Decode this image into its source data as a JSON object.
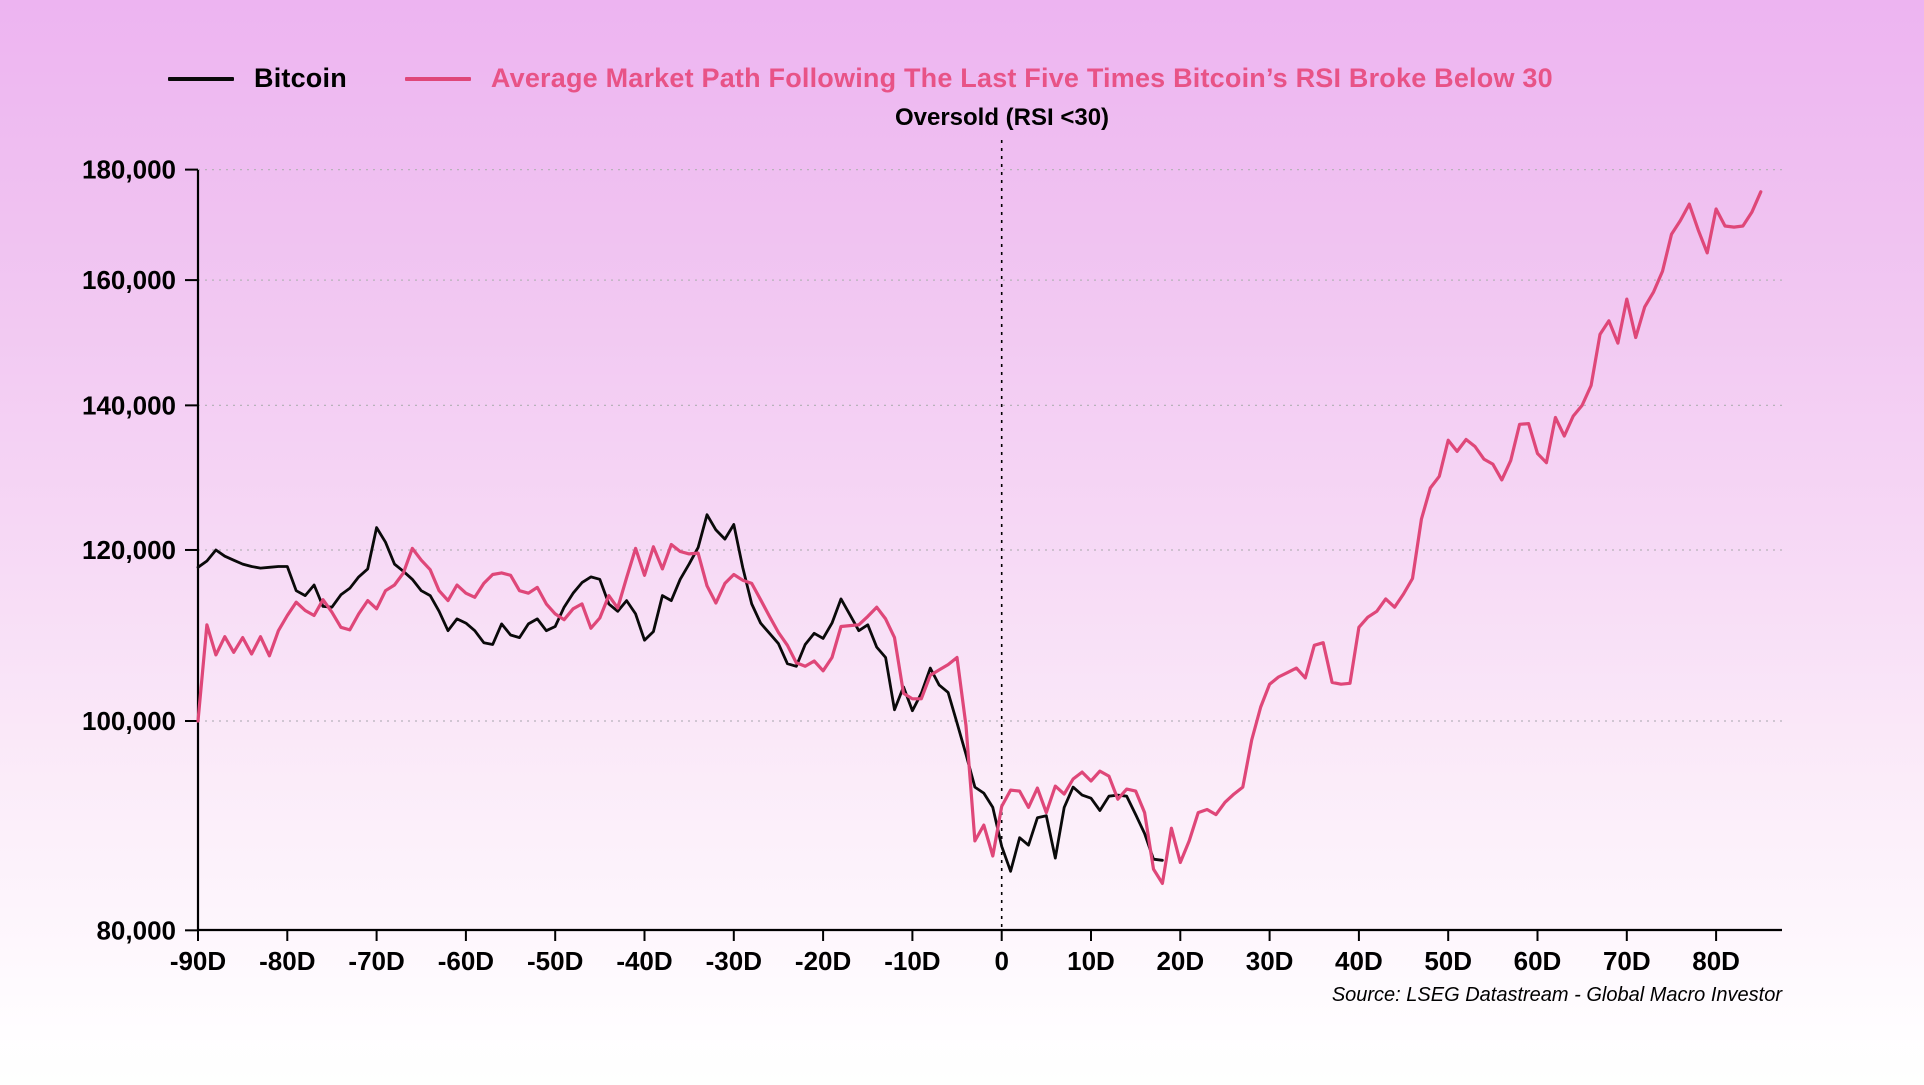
{
  "legend": {
    "bitcoin_label": "Bitcoin",
    "average_label": "Average Market Path Following The Last Five Times Bitcoin’s RSI Broke Below 30"
  },
  "annotation": {
    "oversold_label": "Oversold (RSI <30)"
  },
  "source_text": "Source: LSEG Datastream - Global Macro Investor",
  "colors": {
    "bitcoin_line": "#0a0a0a",
    "average_line": "#df4779",
    "title_pink": "#e85387",
    "gridline": "#b8b2ba",
    "axis": "#000000",
    "background_top": "#edb4f1",
    "background_bottom": "#fffdff"
  },
  "chart_data": {
    "type": "line",
    "title": "Average Market Path Following The Last Five Times Bitcoin’s RSI Broke Below 30",
    "xlabel": "",
    "ylabel": "",
    "y_scale": "log",
    "ylim": [
      80000,
      180000
    ],
    "xlim": [
      -90,
      87
    ],
    "grid": "dotted horizontal at each y tick; dotted vertical marker at x=0",
    "legend_position": "top",
    "values_unit": "USD (values stored in thousands)",
    "y_ticks": [
      {
        "value": 80,
        "label": "80,000"
      },
      {
        "value": 100,
        "label": "100,000"
      },
      {
        "value": 120,
        "label": "120,000"
      },
      {
        "value": 140,
        "label": "140,000"
      },
      {
        "value": 160,
        "label": "160,000"
      },
      {
        "value": 180,
        "label": "180,000"
      }
    ],
    "x_ticks": [
      {
        "value": -90,
        "label": "-90D"
      },
      {
        "value": -80,
        "label": "-80D"
      },
      {
        "value": -70,
        "label": "-70D"
      },
      {
        "value": -60,
        "label": "-60D"
      },
      {
        "value": -50,
        "label": "-50D"
      },
      {
        "value": -40,
        "label": "-40D"
      },
      {
        "value": -30,
        "label": "-30D"
      },
      {
        "value": -20,
        "label": "-20D"
      },
      {
        "value": -10,
        "label": "-10D"
      },
      {
        "value": 0,
        "label": "0"
      },
      {
        "value": 10,
        "label": "10D"
      },
      {
        "value": 20,
        "label": "20D"
      },
      {
        "value": 30,
        "label": "30D"
      },
      {
        "value": 40,
        "label": "40D"
      },
      {
        "value": 50,
        "label": "50D"
      },
      {
        "value": 60,
        "label": "60D"
      },
      {
        "value": 70,
        "label": "70D"
      },
      {
        "value": 80,
        "label": "80D"
      }
    ],
    "zero_marker": {
      "x": 0,
      "label": "Oversold (RSI <30)"
    },
    "series": [
      {
        "name": "Bitcoin",
        "color": "#0a0a0a",
        "x_start": -90,
        "x_step": 1,
        "values": [
          117.8,
          118.6,
          120.0,
          119.2,
          118.7,
          118.2,
          117.9,
          117.7,
          117.8,
          117.9,
          117.9,
          114.9,
          114.3,
          115.6,
          113.0,
          112.9,
          114.4,
          115.2,
          116.6,
          117.6,
          122.9,
          121.0,
          118.2,
          117.3,
          116.3,
          114.9,
          114.3,
          112.4,
          110.1,
          111.5,
          111.0,
          110.1,
          108.7,
          108.5,
          110.9,
          109.6,
          109.3,
          110.9,
          111.5,
          110.1,
          110.6,
          112.9,
          114.6,
          115.9,
          116.6,
          116.3,
          113.3,
          112.4,
          113.7,
          112.1,
          109.0,
          110.0,
          114.3,
          113.7,
          116.3,
          118.2,
          120.3,
          124.6,
          122.6,
          121.4,
          123.3,
          117.8,
          113.3,
          111.0,
          109.8,
          108.6,
          106.3,
          106.0,
          108.5,
          109.8,
          109.2,
          111.0,
          113.9,
          112.0,
          110.1,
          110.8,
          108.2,
          107.0,
          101.2,
          103.7,
          101.1,
          103.0,
          105.8,
          103.9,
          103.1,
          99.8,
          96.5,
          93.2,
          92.6,
          91.2,
          87.5,
          85.2,
          88.3,
          87.6,
          90.2,
          90.4,
          86.4,
          91.2,
          93.2,
          92.4,
          92.1,
          90.9,
          92.3,
          92.4,
          92.3,
          90.5,
          88.7,
          86.3,
          86.2
        ]
      },
      {
        "name": "Average Market Path Following The Last Five Times Bitcoin’s RSI Broke Below 30",
        "color": "#df4779",
        "x_start": -90,
        "x_step": 1,
        "values": [
          100.0,
          110.8,
          107.3,
          109.4,
          107.6,
          109.3,
          107.4,
          109.4,
          107.2,
          110.1,
          111.9,
          113.5,
          112.5,
          111.9,
          113.8,
          112.3,
          110.5,
          110.2,
          112.1,
          113.7,
          112.7,
          114.9,
          115.6,
          117.1,
          120.2,
          118.7,
          117.5,
          114.9,
          113.7,
          115.6,
          114.6,
          114.1,
          115.8,
          116.9,
          117.1,
          116.8,
          114.9,
          114.6,
          115.3,
          113.3,
          112.1,
          111.4,
          112.7,
          113.3,
          110.4,
          111.6,
          114.3,
          112.8,
          116.5,
          120.2,
          116.8,
          120.4,
          117.6,
          120.7,
          119.8,
          119.5,
          119.6,
          115.5,
          113.4,
          115.8,
          116.9,
          116.2,
          115.8,
          113.8,
          111.8,
          109.9,
          108.4,
          106.4,
          106.0,
          106.6,
          105.5,
          107.0,
          110.6,
          110.7,
          110.8,
          111.8,
          112.9,
          111.5,
          109.3,
          103.0,
          102.4,
          102.4,
          105.0,
          105.6,
          106.2,
          107.0,
          99.5,
          88.0,
          89.5,
          86.6,
          91.3,
          92.9,
          92.8,
          91.2,
          93.1,
          90.7,
          93.3,
          92.5,
          94.0,
          94.7,
          93.8,
          94.8,
          94.3,
          92.0,
          93.0,
          92.8,
          90.7,
          85.4,
          84.1,
          89.2,
          86.0,
          88.0,
          90.7,
          91.0,
          90.5,
          91.7,
          92.5,
          93.2,
          98.0,
          101.5,
          104.0,
          104.8,
          105.3,
          105.8,
          104.7,
          108.4,
          108.7,
          104.2,
          104.0,
          104.1,
          110.5,
          111.7,
          112.4,
          113.9,
          112.9,
          114.5,
          116.4,
          124.0,
          128.2,
          129.8,
          134.9,
          133.3,
          135.0,
          134.0,
          132.2,
          131.5,
          129.3,
          132.0,
          137.2,
          137.3,
          133.0,
          131.7,
          138.2,
          135.5,
          138.4,
          140.0,
          143.0,
          151.0,
          153.2,
          149.6,
          156.8,
          150.5,
          155.5,
          158.0,
          161.5,
          168.0,
          170.5,
          173.5,
          168.8,
          164.7,
          172.6,
          169.5,
          169.3,
          169.5,
          172.0,
          175.8
        ]
      }
    ]
  }
}
